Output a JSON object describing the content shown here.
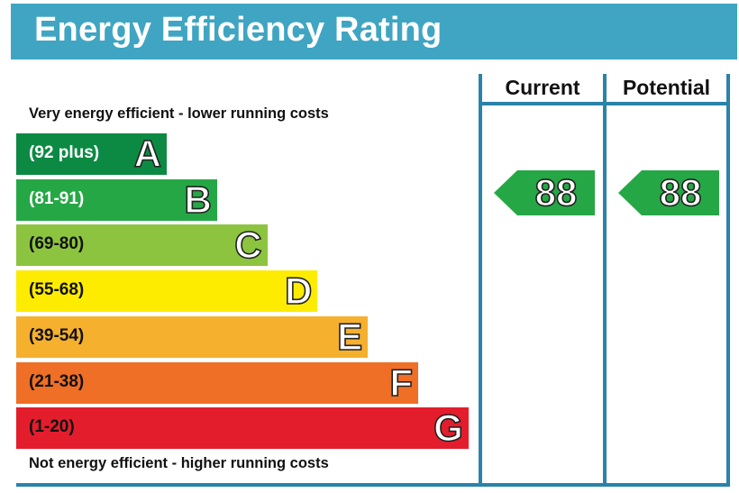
{
  "title": "Energy Efficiency Rating",
  "top_caption": "Very energy efficient - lower running costs",
  "bottom_caption": "Not energy efficient - higher running costs",
  "columns": {
    "current": "Current",
    "potential": "Potential"
  },
  "chart_data": {
    "type": "bar",
    "categories": [
      "A",
      "B",
      "C",
      "D",
      "E",
      "F",
      "G"
    ],
    "ranges": [
      "(92 plus)",
      "(81-91)",
      "(69-80)",
      "(55-68)",
      "(39-54)",
      "(21-38)",
      "(1-20)"
    ],
    "colors": [
      "#0c8a43",
      "#26a746",
      "#8dc43f",
      "#fdec00",
      "#f5b02e",
      "#ee6f25",
      "#e31d2c"
    ],
    "range_text_colors": [
      "#ffffff",
      "#ffffff",
      "#111111",
      "#111111",
      "#111111",
      "#111111",
      "#111111"
    ],
    "current": 88,
    "potential": 88,
    "current_band": "B",
    "potential_band": "B",
    "arrow_color": "#26a746"
  }
}
